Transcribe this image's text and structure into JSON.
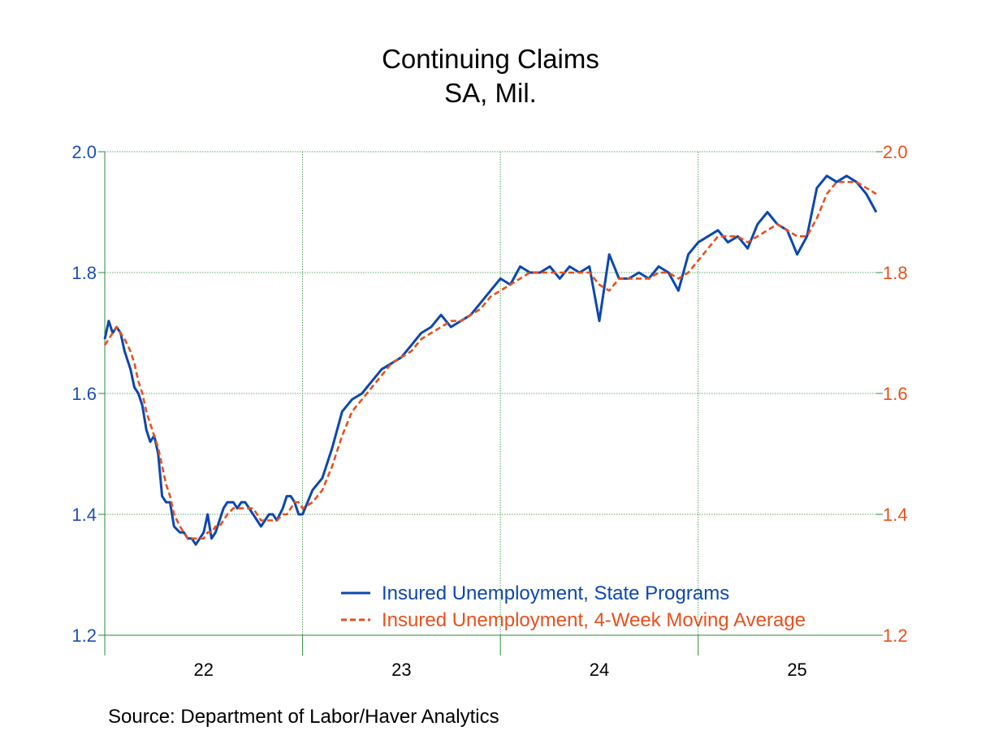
{
  "chart_data": {
    "type": "line",
    "title": "Continuing Claims",
    "subtitle": "SA, Mil.",
    "source": "Source:  Department of Labor/Haver Analytics",
    "x_tick_labels": [
      "22",
      "23",
      "24",
      "25"
    ],
    "y_ticks_left": [
      "2.0",
      "1.8",
      "1.6",
      "1.4",
      "1.2"
    ],
    "y_ticks_right": [
      "2.0",
      "1.8",
      "1.6",
      "1.4",
      "1.2"
    ],
    "ylim": [
      1.2,
      2.0
    ],
    "xlim": [
      2022.0,
      2025.9
    ],
    "grid": true,
    "legend_position": "bottom-right",
    "colors": {
      "left_axis": "#1a4fb5",
      "right_axis": "#e8501c",
      "grid": "#2e8b3a"
    },
    "series": [
      {
        "name": "Insured Unemployment, State Programs",
        "style": "solid",
        "color": "#0d47b0",
        "x": [
          2022.0,
          2022.02,
          2022.04,
          2022.06,
          2022.08,
          2022.1,
          2022.13,
          2022.15,
          2022.17,
          2022.19,
          2022.21,
          2022.23,
          2022.25,
          2022.27,
          2022.29,
          2022.31,
          2022.33,
          2022.35,
          2022.38,
          2022.4,
          2022.42,
          2022.44,
          2022.46,
          2022.48,
          2022.5,
          2022.52,
          2022.54,
          2022.56,
          2022.58,
          2022.6,
          2022.62,
          2022.65,
          2022.67,
          2022.69,
          2022.71,
          2022.73,
          2022.75,
          2022.77,
          2022.79,
          2022.81,
          2022.83,
          2022.85,
          2022.87,
          2022.9,
          2022.92,
          2022.94,
          2022.96,
          2022.98,
          2023.0,
          2023.05,
          2023.1,
          2023.15,
          2023.2,
          2023.25,
          2023.3,
          2023.35,
          2023.4,
          2023.45,
          2023.5,
          2023.55,
          2023.6,
          2023.65,
          2023.7,
          2023.75,
          2023.8,
          2023.85,
          2023.9,
          2023.95,
          2024.0,
          2024.05,
          2024.1,
          2024.15,
          2024.2,
          2024.25,
          2024.3,
          2024.35,
          2024.4,
          2024.45,
          2024.5,
          2024.55,
          2024.6,
          2024.65,
          2024.7,
          2024.75,
          2024.8,
          2024.85,
          2024.9,
          2024.95,
          2025.0,
          2025.05,
          2025.1,
          2025.15,
          2025.2,
          2025.25,
          2025.3,
          2025.35,
          2025.4,
          2025.45,
          2025.5,
          2025.55,
          2025.6,
          2025.65,
          2025.7,
          2025.75,
          2025.8,
          2025.85,
          2025.9
        ],
        "values": [
          1.69,
          1.72,
          1.7,
          1.71,
          1.7,
          1.67,
          1.64,
          1.61,
          1.6,
          1.58,
          1.54,
          1.52,
          1.53,
          1.5,
          1.43,
          1.42,
          1.42,
          1.38,
          1.37,
          1.37,
          1.36,
          1.36,
          1.35,
          1.36,
          1.37,
          1.4,
          1.36,
          1.37,
          1.39,
          1.41,
          1.42,
          1.42,
          1.41,
          1.42,
          1.42,
          1.41,
          1.4,
          1.39,
          1.38,
          1.39,
          1.4,
          1.4,
          1.39,
          1.41,
          1.43,
          1.43,
          1.42,
          1.4,
          1.4,
          1.44,
          1.46,
          1.51,
          1.57,
          1.59,
          1.6,
          1.62,
          1.64,
          1.65,
          1.66,
          1.68,
          1.7,
          1.71,
          1.73,
          1.71,
          1.72,
          1.73,
          1.75,
          1.77,
          1.79,
          1.78,
          1.81,
          1.8,
          1.8,
          1.81,
          1.79,
          1.81,
          1.8,
          1.81,
          1.72,
          1.83,
          1.79,
          1.79,
          1.8,
          1.79,
          1.81,
          1.8,
          1.77,
          1.83,
          1.85,
          1.86,
          1.87,
          1.85,
          1.86,
          1.84,
          1.88,
          1.9,
          1.88,
          1.87,
          1.83,
          1.86,
          1.94,
          1.96,
          1.95,
          1.96,
          1.95,
          1.93,
          1.9
        ]
      },
      {
        "name": "Insured Unemployment, 4-Week Moving Average",
        "style": "dashed",
        "color": "#e8501c",
        "x": [
          2022.0,
          2022.02,
          2022.04,
          2022.06,
          2022.08,
          2022.1,
          2022.13,
          2022.15,
          2022.17,
          2022.19,
          2022.21,
          2022.23,
          2022.25,
          2022.27,
          2022.29,
          2022.31,
          2022.33,
          2022.35,
          2022.38,
          2022.4,
          2022.42,
          2022.44,
          2022.46,
          2022.48,
          2022.5,
          2022.52,
          2022.54,
          2022.56,
          2022.58,
          2022.6,
          2022.62,
          2022.65,
          2022.67,
          2022.69,
          2022.71,
          2022.73,
          2022.75,
          2022.77,
          2022.79,
          2022.81,
          2022.83,
          2022.85,
          2022.87,
          2022.9,
          2022.92,
          2022.94,
          2022.96,
          2022.98,
          2023.0,
          2023.05,
          2023.1,
          2023.15,
          2023.2,
          2023.25,
          2023.3,
          2023.35,
          2023.4,
          2023.45,
          2023.5,
          2023.55,
          2023.6,
          2023.65,
          2023.7,
          2023.75,
          2023.8,
          2023.85,
          2023.9,
          2023.95,
          2024.0,
          2024.05,
          2024.1,
          2024.15,
          2024.2,
          2024.25,
          2024.3,
          2024.35,
          2024.4,
          2024.45,
          2024.5,
          2024.55,
          2024.6,
          2024.65,
          2024.7,
          2024.75,
          2024.8,
          2024.85,
          2024.9,
          2024.95,
          2025.0,
          2025.05,
          2025.1,
          2025.15,
          2025.2,
          2025.25,
          2025.3,
          2025.35,
          2025.4,
          2025.45,
          2025.5,
          2025.55,
          2025.6,
          2025.65,
          2025.7,
          2025.75,
          2025.8,
          2025.85,
          2025.9
        ],
        "values": [
          1.68,
          1.69,
          1.7,
          1.71,
          1.7,
          1.69,
          1.67,
          1.65,
          1.62,
          1.6,
          1.57,
          1.55,
          1.53,
          1.51,
          1.48,
          1.45,
          1.43,
          1.4,
          1.38,
          1.37,
          1.36,
          1.36,
          1.36,
          1.36,
          1.36,
          1.37,
          1.37,
          1.38,
          1.38,
          1.39,
          1.4,
          1.41,
          1.41,
          1.41,
          1.41,
          1.41,
          1.41,
          1.4,
          1.39,
          1.39,
          1.39,
          1.39,
          1.39,
          1.4,
          1.4,
          1.41,
          1.42,
          1.42,
          1.41,
          1.42,
          1.44,
          1.48,
          1.53,
          1.57,
          1.59,
          1.61,
          1.63,
          1.65,
          1.66,
          1.67,
          1.69,
          1.7,
          1.71,
          1.72,
          1.72,
          1.73,
          1.74,
          1.76,
          1.77,
          1.78,
          1.79,
          1.8,
          1.8,
          1.8,
          1.8,
          1.8,
          1.8,
          1.8,
          1.78,
          1.77,
          1.79,
          1.79,
          1.79,
          1.79,
          1.8,
          1.8,
          1.79,
          1.8,
          1.82,
          1.84,
          1.86,
          1.86,
          1.86,
          1.85,
          1.86,
          1.87,
          1.88,
          1.87,
          1.86,
          1.86,
          1.89,
          1.93,
          1.95,
          1.95,
          1.95,
          1.94,
          1.93
        ]
      }
    ]
  }
}
